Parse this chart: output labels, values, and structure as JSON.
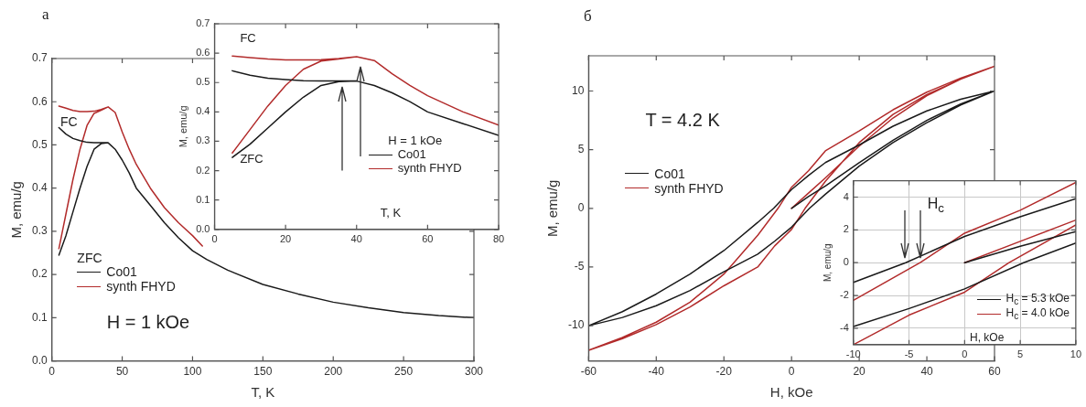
{
  "chart_data": [
    {
      "type": "line",
      "title": "а",
      "xlabel": "T, K",
      "ylabel": "M, emu/g",
      "xlim": [
        0,
        300
      ],
      "xticks": [
        0,
        50,
        100,
        150,
        200,
        250,
        300
      ],
      "ylim": [
        0,
        0.7
      ],
      "yticks": [
        {
          "value": 0,
          "label": "0.0"
        },
        0.1,
        0.2,
        0.3,
        0.4,
        0.5,
        0.6,
        0.7
      ],
      "legend": "left",
      "annotations": [
        "FC",
        "ZFC",
        "H = 1 kOe"
      ],
      "series": [
        {
          "name": "Co01",
          "color": "#1a1a1a",
          "x": [
            40,
            35,
            30,
            25,
            20,
            15,
            10,
            5,
            null,
            5,
            10,
            15,
            20,
            25,
            30,
            35,
            40,
            45,
            50,
            55,
            60,
            70,
            80,
            90,
            100,
            110,
            125,
            150,
            175,
            200,
            225,
            250,
            275,
            300
          ],
          "values": [
            0.505,
            0.505,
            0.505,
            0.506,
            0.51,
            0.515,
            0.525,
            0.54,
            null,
            0.245,
            0.29,
            0.345,
            0.4,
            0.45,
            0.49,
            0.503,
            0.505,
            0.49,
            0.465,
            0.435,
            0.4,
            0.36,
            0.32,
            0.285,
            0.255,
            0.235,
            0.21,
            0.177,
            0.155,
            0.136,
            0.123,
            0.112,
            0.105,
            0.1
          ]
        },
        {
          "name": "synth FHYD",
          "color": "#b22b2b",
          "x": [
            40,
            35,
            30,
            25,
            20,
            15,
            10,
            5,
            null,
            5,
            10,
            15,
            20,
            25,
            30,
            35,
            40,
            45,
            50,
            55,
            60,
            70,
            80,
            90,
            100,
            107
          ],
          "values": [
            0.588,
            0.582,
            0.578,
            0.577,
            0.577,
            0.58,
            0.585,
            0.59,
            null,
            0.26,
            0.34,
            0.42,
            0.49,
            0.545,
            0.573,
            0.58,
            0.588,
            0.575,
            0.53,
            0.49,
            0.455,
            0.4,
            0.355,
            0.32,
            0.29,
            0.266
          ]
        }
      ]
    },
    {
      "type": "line",
      "xlabel": "T, K",
      "ylabel": "M, emu/g",
      "xlim": [
        0,
        80
      ],
      "xticks": [
        0,
        20,
        40,
        60,
        80
      ],
      "ylim": [
        0,
        0.7
      ],
      "yticks": [
        {
          "value": 0,
          "label": "0.0"
        },
        0.1,
        0.2,
        0.3,
        0.4,
        0.5,
        0.6,
        0.7
      ],
      "legend": "right",
      "legend_title": "H = 1 kOe",
      "annotations": [
        "FC",
        "ZFC"
      ],
      "series": [
        {
          "name": "Co01",
          "color": "#1a1a1a",
          "x": [
            40,
            35,
            30,
            25,
            20,
            15,
            10,
            5,
            null,
            5,
            10,
            15,
            20,
            25,
            30,
            35,
            40,
            45,
            50,
            55,
            60,
            70,
            80
          ],
          "values": [
            0.505,
            0.505,
            0.505,
            0.506,
            0.51,
            0.515,
            0.525,
            0.54,
            null,
            0.245,
            0.29,
            0.345,
            0.4,
            0.45,
            0.49,
            0.503,
            0.505,
            0.49,
            0.465,
            0.435,
            0.4,
            0.36,
            0.32
          ]
        },
        {
          "name": "synth FHYD",
          "color": "#b22b2b",
          "x": [
            40,
            35,
            30,
            25,
            20,
            15,
            10,
            5,
            null,
            5,
            10,
            15,
            20,
            25,
            30,
            35,
            40,
            45,
            50,
            55,
            60,
            70,
            80
          ],
          "values": [
            0.588,
            0.582,
            0.578,
            0.577,
            0.577,
            0.58,
            0.585,
            0.59,
            null,
            0.26,
            0.34,
            0.42,
            0.49,
            0.545,
            0.573,
            0.58,
            0.588,
            0.575,
            0.53,
            0.49,
            0.455,
            0.4,
            0.355
          ]
        }
      ]
    },
    {
      "type": "line",
      "title": "б",
      "xlabel": "H, kOe",
      "ylabel": "M, emu/g",
      "xlim": [
        -60,
        60
      ],
      "xticks": [
        -60,
        -40,
        -20,
        0,
        20,
        40,
        60
      ],
      "ylim": [
        -13,
        13
      ],
      "yticks": [
        -10,
        -5,
        0,
        5,
        10
      ],
      "legend": "left",
      "annotations": [
        "T = 4.2 K"
      ],
      "series": [
        {
          "name": "Co01",
          "color": "#1a1a1a",
          "x": [
            0,
            5,
            10,
            20,
            30,
            40,
            50,
            60,
            50,
            40,
            30,
            20,
            10,
            5,
            0,
            -5.3,
            -10,
            -20,
            -30,
            -40,
            -50,
            -60,
            -50,
            -40,
            -30,
            -20,
            -10,
            -5,
            0,
            5.3,
            10,
            20,
            30,
            40,
            50,
            60
          ],
          "values": [
            0,
            1.0,
            1.9,
            3.9,
            5.8,
            7.5,
            8.9,
            10,
            9.3,
            8.3,
            7.0,
            5.4,
            3.9,
            2.8,
            1.6,
            0,
            -1.2,
            -3.6,
            -5.6,
            -7.3,
            -8.8,
            -10,
            -9.3,
            -8.3,
            -7.0,
            -5.4,
            -3.9,
            -2.8,
            -1.6,
            0,
            1.2,
            3.6,
            5.6,
            7.3,
            8.8,
            10
          ]
        },
        {
          "name": "synth FHYD",
          "color": "#b22b2b",
          "x": [
            0,
            5,
            10,
            20,
            30,
            40,
            50,
            60,
            50,
            40,
            30,
            20,
            10,
            5,
            0,
            -4,
            -10,
            -20,
            -30,
            -40,
            -50,
            -60,
            -50,
            -40,
            -30,
            -20,
            -10,
            -5,
            0,
            4,
            10,
            20,
            30,
            40,
            50,
            60
          ],
          "values": [
            0,
            1.3,
            2.6,
            5.3,
            7.7,
            9.6,
            11.0,
            12.1,
            11.1,
            9.9,
            8.4,
            6.6,
            4.9,
            3.2,
            1.8,
            0,
            -2.3,
            -5.6,
            -8.0,
            -9.7,
            -11.0,
            -12.1,
            -11.1,
            -9.9,
            -8.4,
            -6.6,
            -5.0,
            -3.2,
            -1.8,
            0,
            2.3,
            5.6,
            8.0,
            9.7,
            11.0,
            12.1
          ]
        }
      ]
    },
    {
      "type": "line",
      "xlabel": "H, kOe",
      "ylabel": "M, emu/g",
      "xlim": [
        -10,
        10
      ],
      "xticks": [
        -10,
        -5,
        0,
        5,
        10
      ],
      "ylim": [
        -5,
        5
      ],
      "yticks": [
        -4,
        -2,
        0,
        2,
        4
      ],
      "grid": true,
      "legend": "bottom right",
      "annotations": [
        {
          "text": "H$_{c}$",
          "x": -4.0,
          "y": 0
        }
      ],
      "series": [
        {
          "name": "H$_{c}$ = 5.3 kOe",
          "color": "#1a1a1a",
          "x": [
            0,
            5,
            10,
            null,
            10,
            5,
            0,
            -5.3,
            -10,
            null,
            -10,
            -5,
            0,
            5.3,
            10
          ],
          "values": [
            0,
            1.0,
            1.9,
            null,
            3.9,
            2.8,
            1.6,
            0,
            -1.2,
            null,
            -3.9,
            -2.8,
            -1.6,
            0,
            1.2
          ]
        },
        {
          "name": "H$_{c}$ = 4.0 kOe",
          "color": "#b22b2b",
          "x": [
            0,
            5,
            10,
            null,
            10,
            5,
            0,
            -4,
            -10,
            null,
            -10,
            -5,
            0,
            4,
            10
          ],
          "values": [
            0,
            1.3,
            2.6,
            null,
            4.9,
            3.2,
            1.8,
            0,
            -2.3,
            null,
            -5.0,
            -3.2,
            -1.8,
            0,
            2.3
          ]
        }
      ]
    }
  ]
}
